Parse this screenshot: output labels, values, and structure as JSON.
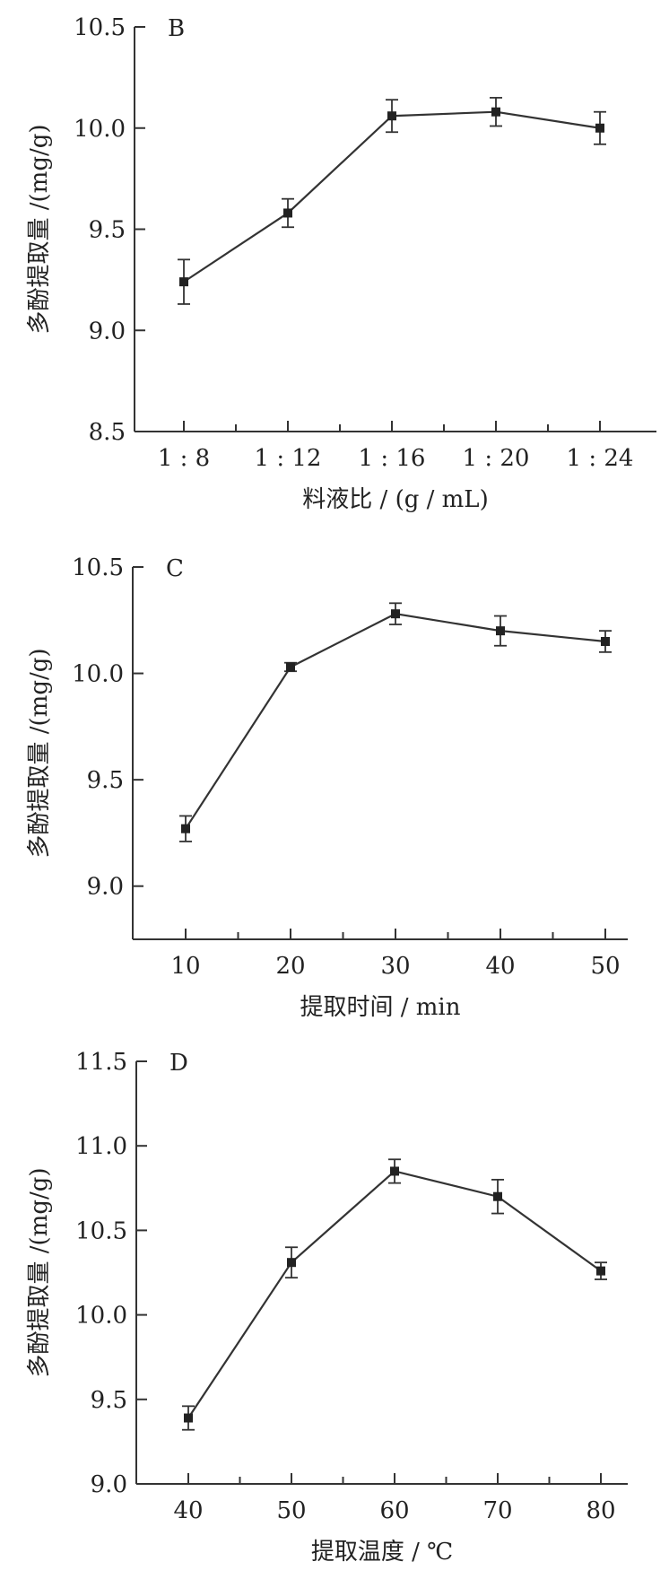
{
  "chart_data": [
    {
      "type": "line",
      "panel": "B",
      "xlabel": "料液比 / (g / mL)",
      "ylabel": "多酚提取量 /(mg/g)",
      "categories": [
        "1 : 8",
        "1 : 12",
        "1 : 16",
        "1 : 20",
        "1 : 24"
      ],
      "values": [
        9.24,
        9.58,
        10.06,
        10.08,
        10.0
      ],
      "errors": [
        0.11,
        0.07,
        0.08,
        0.07,
        0.08
      ],
      "ylim": [
        8.5,
        10.5
      ],
      "yticks": [
        "8.5",
        "9.0",
        "9.5",
        "10.0",
        "10.5"
      ],
      "grid": false
    },
    {
      "type": "line",
      "panel": "C",
      "xlabel": "提取时间 / min",
      "ylabel": "多酚提取量 /(mg/g)",
      "categories": [
        "10",
        "20",
        "30",
        "40",
        "50"
      ],
      "values": [
        9.27,
        10.03,
        10.28,
        10.2,
        10.15
      ],
      "errors": [
        0.06,
        0.02,
        0.05,
        0.07,
        0.05
      ],
      "ylim": [
        8.75,
        10.5
      ],
      "yticks": [
        "9.0",
        "9.5",
        "10.0",
        "10.5"
      ],
      "grid": false
    },
    {
      "type": "line",
      "panel": "D",
      "xlabel": "提取温度 / ℃",
      "ylabel": "多酚提取量 /(mg/g)",
      "categories": [
        "40",
        "50",
        "60",
        "70",
        "80"
      ],
      "values": [
        9.39,
        10.31,
        10.85,
        10.7,
        10.26
      ],
      "errors": [
        0.07,
        0.09,
        0.07,
        0.1,
        0.05
      ],
      "ylim": [
        9.0,
        11.5
      ],
      "yticks": [
        "9.0",
        "9.5",
        "10.0",
        "10.5",
        "11.0",
        "11.5"
      ],
      "grid": false
    }
  ]
}
